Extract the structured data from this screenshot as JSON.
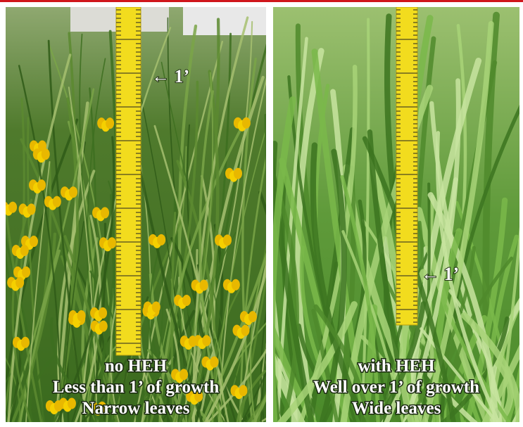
{
  "panels": [
    {
      "annotation": "← 1’",
      "caption": [
        "no HEH",
        "Less than 1’ of growth",
        "Narrow leaves"
      ]
    },
    {
      "annotation": "← 1’",
      "caption": [
        "with HEH",
        "Well over 1’ of growth",
        "Wide leaves"
      ]
    }
  ]
}
